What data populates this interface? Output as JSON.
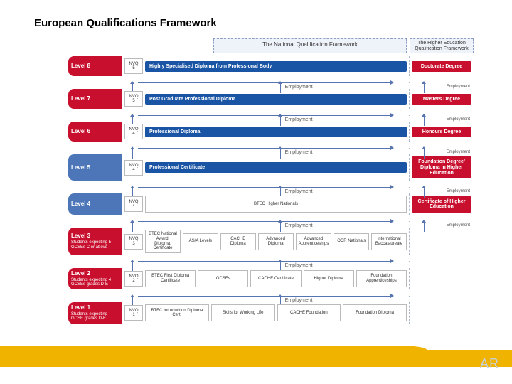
{
  "title": "European Qualifications Framework",
  "colors": {
    "blue": "#1a55a5",
    "red": "#c8102e",
    "lightblue": "#4d76b8",
    "pale": "#eef2f9",
    "border": "#bbbbbb",
    "arrow": "#5574b0",
    "band": "#f0b400",
    "logo": "#c9cfd6"
  },
  "headers": {
    "national": "The National Qualification Framework",
    "higher": "The Higher Education Qualification Framework"
  },
  "logo": "AR",
  "employment": "Employment",
  "levels": [
    {
      "n": 8,
      "title": "Level 8",
      "sub": "",
      "color": "#c8102e",
      "nvq": "NVQ 5",
      "blue": "Highly Specialised Diploma from Professional Body",
      "he": "Doctorate Degree",
      "heColor": "#c8102e",
      "boxes": []
    },
    {
      "n": 7,
      "title": "Level 7",
      "sub": "",
      "color": "#c8102e",
      "nvq": "NVQ 5",
      "blue": "Post Graduate Professional Diploma",
      "he": "Masters Degree",
      "heColor": "#c8102e",
      "boxes": []
    },
    {
      "n": 6,
      "title": "Level 6",
      "sub": "",
      "color": "#c8102e",
      "nvq": "NVQ 4",
      "blue": "Professional Diploma",
      "he": "Honours Degree",
      "heColor": "#c8102e",
      "boxes": []
    },
    {
      "n": 5,
      "title": "Level 5",
      "sub": "",
      "color": "#4d76b8",
      "nvq": "NVQ 4",
      "blue": "Professional Certificate",
      "he": "Foundation Degree/ Diploma in Higher Education",
      "heColor": "#c8102e",
      "boxes": []
    },
    {
      "n": 4,
      "title": "Level 4",
      "sub": "",
      "color": "#4d76b8",
      "nvq": "NVQ 4",
      "blue": "",
      "he": "Certificate of Higher Education",
      "heColor": "#c8102e",
      "boxes": [
        "BTEC Higher Nationals"
      ]
    },
    {
      "n": 3,
      "title": "Level 3",
      "sub": "Students expecting 5 GCSEs C or above",
      "color": "#c8102e",
      "nvq": "NVQ 3",
      "blue": "",
      "he": "",
      "heColor": "",
      "boxes": [
        "BTEC National Award, Diploma, Certificate",
        "AS/A Levels",
        "CACHE Diploma",
        "Advanced Diploma",
        "Advanced Apprenticeships",
        "OCR Nationals",
        "International Baccalaureate"
      ]
    },
    {
      "n": 2,
      "title": "Level 2",
      "sub": "Students expecting 4 GCSEs grades D-E",
      "color": "#c8102e",
      "nvq": "NVQ 2",
      "blue": "",
      "he": "",
      "heColor": "",
      "boxes": [
        "BTEC First Diploma Certificate",
        "GCSEs",
        "CACHE Certificate",
        "Higher Diploma",
        "Foundation Apprenticeships"
      ]
    },
    {
      "n": 1,
      "title": "Level 1",
      "sub": "Students expecting GCSE grades D-F",
      "color": "#c8102e",
      "nvq": "NVQ 1",
      "blue": "",
      "he": "",
      "heColor": "",
      "boxes": [
        "BTEC Introduction Diploma Cert.",
        "Skills for Working Life",
        "CACHE Foundation",
        "Foundation Diploma"
      ]
    }
  ]
}
